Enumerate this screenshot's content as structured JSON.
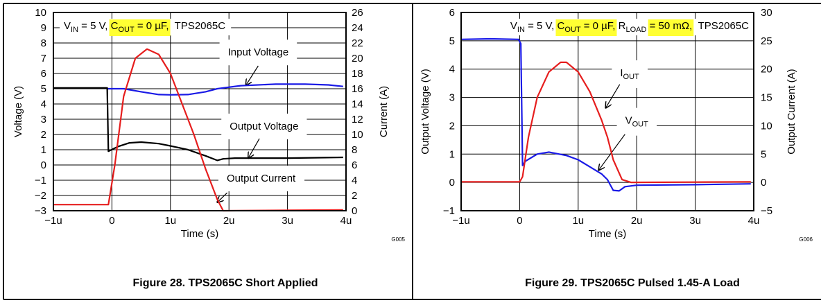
{
  "chart_data": [
    {
      "type": "line",
      "figure_id": "G005",
      "caption": "Figure 28. TPS2065C Short Applied",
      "title_parts": [
        {
          "text": "V"
        },
        {
          "text": "IN",
          "sub": true
        },
        {
          "text": " = 5 V, "
        },
        {
          "text": "C",
          "highlight": true
        },
        {
          "text": "OUT",
          "sub": true,
          "highlight": true
        },
        {
          "text": " = 0 µF,",
          "highlight": true
        },
        {
          "text": "  TPS2065C"
        }
      ],
      "xlabel": "Time (s)",
      "ylabel": "Voltage (V)",
      "y2label": "Current (A)",
      "xlim": [
        -1,
        4
      ],
      "ylim": [
        -3,
        10
      ],
      "y2lim": [
        0,
        26
      ],
      "xticks": [
        "−1u",
        "0",
        "1u",
        "2u",
        "3u",
        "4u"
      ],
      "yticks": [
        "10",
        "9",
        "8",
        "7",
        "6",
        "5",
        "4",
        "3",
        "2",
        "1",
        "0",
        "−1",
        "−2",
        "−3"
      ],
      "y2ticks": [
        "26",
        "24",
        "22",
        "20",
        "18",
        "16",
        "14",
        "12",
        "10",
        "8",
        "6",
        "4",
        "2",
        "0"
      ],
      "grid": true,
      "series": [
        {
          "name": "Input Voltage",
          "axis": "left",
          "color": "#1a1ae6",
          "x": [
            -0.08,
            0.2,
            0.5,
            0.8,
            1.0,
            1.3,
            1.6,
            1.8,
            2.2,
            2.8,
            3.3,
            3.7,
            3.95
          ],
          "y": [
            5.0,
            5.0,
            4.8,
            4.62,
            4.6,
            4.62,
            4.8,
            5.0,
            5.2,
            5.3,
            5.3,
            5.25,
            5.15
          ]
        },
        {
          "name": "Output Voltage",
          "axis": "left",
          "color": "#000000",
          "x": [
            -1.0,
            -0.08,
            -0.06,
            0.1,
            0.3,
            0.5,
            0.8,
            1.0,
            1.3,
            1.6,
            1.8,
            1.9,
            2.1,
            3.0,
            3.95
          ],
          "y": [
            5.05,
            5.05,
            0.9,
            1.2,
            1.45,
            1.5,
            1.4,
            1.25,
            1.0,
            0.6,
            0.3,
            0.4,
            0.45,
            0.45,
            0.5
          ]
        },
        {
          "name": "Output Current",
          "axis": "right",
          "color": "#e61e1e",
          "x": [
            -1.0,
            -0.06,
            0.05,
            0.2,
            0.4,
            0.6,
            0.8,
            1.0,
            1.2,
            1.4,
            1.6,
            1.8,
            1.9,
            3.0,
            3.95
          ],
          "y": [
            0.8,
            0.8,
            6,
            15,
            20,
            21.2,
            20.5,
            18,
            14,
            10,
            5.5,
            1.5,
            0,
            0.05,
            0.1
          ]
        }
      ],
      "annotations": [
        {
          "parts": [
            {
              "text": "Input Voltage"
            }
          ],
          "at": [
            2.5,
            7.4
          ],
          "arrow_from": [
            2.5,
            6.5
          ],
          "arrow_to": [
            2.29,
            5.23
          ]
        },
        {
          "parts": [
            {
              "text": "Output Voltage"
            }
          ],
          "at": [
            2.6,
            2.55
          ],
          "arrow_from": [
            2.52,
            1.73
          ],
          "arrow_to": [
            2.33,
            0.45
          ]
        },
        {
          "parts": [
            {
              "text": "Output Current"
            }
          ],
          "at": [
            2.55,
            -0.86
          ],
          "arrow_from": [
            1.97,
            -1.82
          ],
          "arrow_to": [
            1.8,
            -2.45
          ]
        }
      ]
    },
    {
      "type": "line",
      "figure_id": "G006",
      "caption": "Figure 29. TPS2065C Pulsed 1.45-A Load",
      "title_parts": [
        {
          "text": "V"
        },
        {
          "text": "IN",
          "sub": true
        },
        {
          "text": " = 5 V, "
        },
        {
          "text": "C",
          "highlight": true
        },
        {
          "text": "OUT",
          "sub": true,
          "highlight": true
        },
        {
          "text": " = 0 µF,",
          "highlight": true
        },
        {
          "text": " R"
        },
        {
          "text": "LOAD",
          "sub": true
        },
        {
          "text": " "
        },
        {
          "text": "= 50 mΩ,",
          "highlight": true
        },
        {
          "text": "  TPS2065C"
        }
      ],
      "xlabel": "Time (s)",
      "ylabel": "Output Voltage (V)",
      "y2label": "Output Current (A)",
      "xlim": [
        -1,
        4
      ],
      "ylim": [
        -1,
        6
      ],
      "y2lim": [
        -5,
        30
      ],
      "xticks": [
        "−1u",
        "0",
        "1u",
        "2u",
        "3u",
        "4u"
      ],
      "yticks": [
        "6",
        "5",
        "4",
        "3",
        "2",
        "1",
        "0",
        "−1"
      ],
      "y2ticks": [
        "30",
        "25",
        "20",
        "15",
        "10",
        "5",
        "0",
        "−5"
      ],
      "grid": true,
      "series": [
        {
          "name": "VOUT",
          "axis": "left",
          "color": "#1a1ae6",
          "x": [
            -1.0,
            -0.5,
            -0.02,
            0.02,
            0.05,
            0.1,
            0.3,
            0.5,
            0.8,
            1.0,
            1.2,
            1.4,
            1.5,
            1.6,
            1.7,
            1.8,
            2.0,
            3.0,
            3.95
          ],
          "y": [
            5.05,
            5.07,
            5.05,
            4.9,
            0.6,
            0.75,
            1.0,
            1.07,
            0.95,
            0.8,
            0.55,
            0.3,
            0.1,
            -0.28,
            -0.3,
            -0.15,
            -0.1,
            -0.08,
            -0.05
          ]
        },
        {
          "name": "IOUT",
          "axis": "right",
          "color": "#e61e1e",
          "x": [
            -1.0,
            0.0,
            0.05,
            0.15,
            0.3,
            0.5,
            0.7,
            0.8,
            1.0,
            1.2,
            1.4,
            1.5,
            1.6,
            1.75,
            1.9,
            3.0,
            3.95
          ],
          "y": [
            0.1,
            0.1,
            1,
            8,
            15,
            19.5,
            21.2,
            21.2,
            19.5,
            16,
            11,
            8,
            4,
            0.5,
            0,
            0.05,
            0.1
          ]
        }
      ],
      "annotations": [
        {
          "parts": [
            {
              "text": "I"
            },
            {
              "text": "OUT",
              "sub": true
            }
          ],
          "at": [
            1.88,
            3.87
          ],
          "arrow_from": [
            1.71,
            3.46
          ],
          "arrow_to": [
            1.47,
            2.63
          ]
        },
        {
          "parts": [
            {
              "text": "V"
            },
            {
              "text": "OUT",
              "sub": true
            }
          ],
          "at": [
            2.0,
            2.19
          ],
          "arrow_from": [
            1.8,
            1.7
          ],
          "arrow_to": [
            1.35,
            0.43
          ]
        }
      ]
    }
  ]
}
